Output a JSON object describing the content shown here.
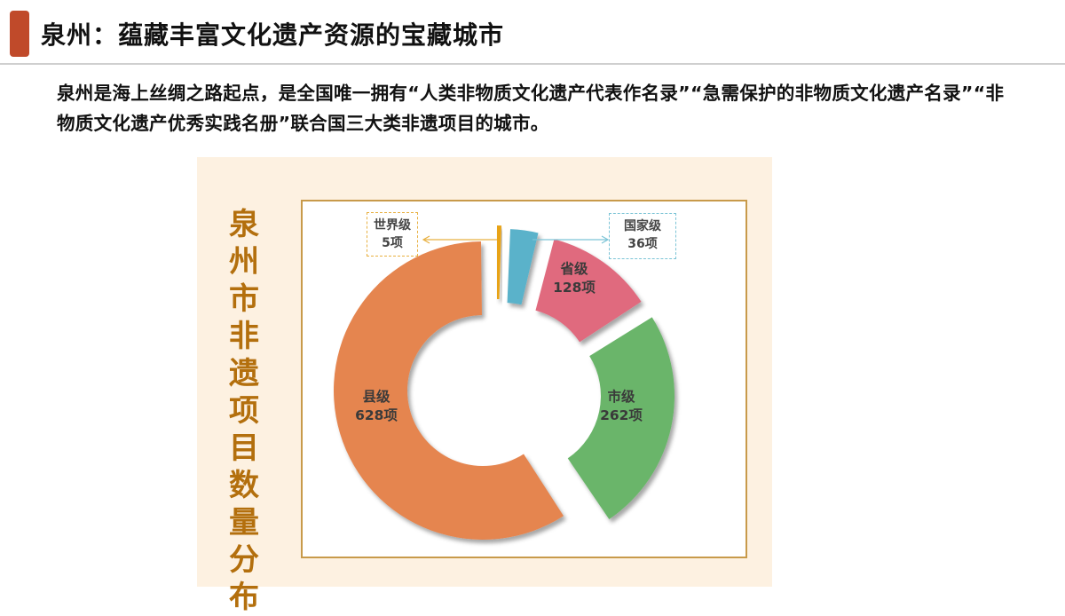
{
  "header": {
    "title": "泉州：蕴藏丰富文化遗产资源的宝藏城市",
    "accent_color": "#c04a2a"
  },
  "description": "泉州是海上丝绸之路起点，是全国唯一拥有“人类非物质文化遗产代表作名录”“急需保护的非物质文化遗产名录”“非物质文化遗产优秀实践名册”联合国三大类非遗项目的城市。",
  "panel": {
    "vertical_title_chars": [
      "泉",
      "州",
      "市",
      "非",
      "遗",
      "项",
      "目",
      "数",
      "量",
      "分",
      "布"
    ],
    "title_color": "#b36f0d",
    "background": "#fdf1e1"
  },
  "chart_data": {
    "type": "pie",
    "subtype": "donut",
    "title": "泉州市非遗项目数量分布",
    "unit": "项",
    "categories": [
      "世界级",
      "国家级",
      "省级",
      "市级",
      "县级"
    ],
    "values": [
      5,
      36,
      128,
      262,
      628
    ],
    "colors": [
      "#e8a317",
      "#5ab2ca",
      "#e06a7e",
      "#6bb56a",
      "#e5854f"
    ],
    "labels": [
      {
        "name": "世界级",
        "value": "5项",
        "position": "callout-left"
      },
      {
        "name": "国家级",
        "value": "36项",
        "position": "callout-right"
      },
      {
        "name": "省级",
        "value": "128项",
        "position": "inside"
      },
      {
        "name": "市级",
        "value": "262项",
        "position": "inside"
      },
      {
        "name": "县级",
        "value": "628项",
        "position": "inside"
      }
    ],
    "exploded": true,
    "legend": "none"
  }
}
